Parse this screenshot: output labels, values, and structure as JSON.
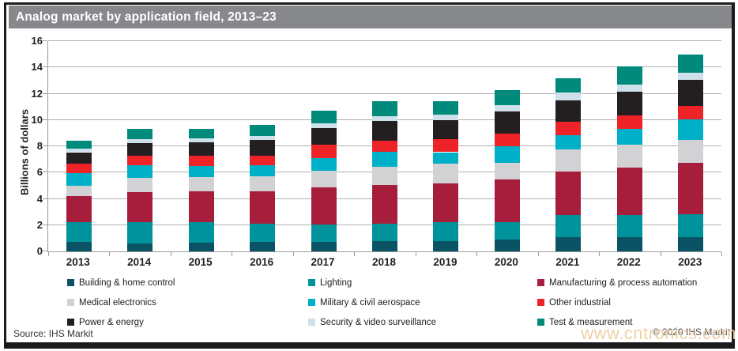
{
  "title": "Analog market by application field, 2013–23",
  "source": "Source: IHS Markit",
  "copyright": "© 2020 IHS Markit",
  "watermark": "www.cntronics.com",
  "chart_data": {
    "type": "bar",
    "stacked": true,
    "title": "Analog market by application field, 2013–23",
    "xlabel": "",
    "ylabel": "Billions of dollars",
    "ylim": [
      0,
      16
    ],
    "ytick_step": 2,
    "grid": true,
    "legend_position": "bottom",
    "categories": [
      "2013",
      "2014",
      "2015",
      "2016",
      "2017",
      "2018",
      "2019",
      "2020",
      "2021",
      "2022",
      "2023"
    ],
    "series": [
      {
        "name": "Building & home control",
        "color": "#0a5364",
        "values": [
          0.7,
          0.6,
          0.65,
          0.75,
          0.75,
          0.8,
          0.8,
          0.9,
          1.1,
          1.1,
          1.1
        ]
      },
      {
        "name": "Lighting",
        "color": "#00939b",
        "values": [
          1.55,
          1.65,
          1.55,
          1.35,
          1.3,
          1.3,
          1.4,
          1.35,
          1.65,
          1.65,
          1.75
        ]
      },
      {
        "name": "Manufacturing & process automation",
        "color": "#a71e3d",
        "values": [
          1.95,
          2.25,
          2.4,
          2.5,
          2.8,
          2.95,
          3.0,
          3.25,
          3.3,
          3.6,
          3.9
        ]
      },
      {
        "name": "Medical electronics",
        "color": "#d2d2d4",
        "values": [
          0.8,
          1.1,
          1.05,
          1.1,
          1.3,
          1.4,
          1.5,
          1.25,
          1.7,
          1.75,
          1.75
        ]
      },
      {
        "name": "Military & civil aerospace",
        "color": "#00afc8",
        "values": [
          0.95,
          0.95,
          0.85,
          0.85,
          0.95,
          1.15,
          0.85,
          1.25,
          1.1,
          1.25,
          1.55
        ]
      },
      {
        "name": "Other industrial",
        "color": "#ee2328",
        "values": [
          0.75,
          0.75,
          0.75,
          0.75,
          1.0,
          0.85,
          1.0,
          0.95,
          1.0,
          1.0,
          1.0
        ]
      },
      {
        "name": "Power & energy",
        "color": "#231f20",
        "values": [
          0.85,
          0.95,
          1.05,
          1.2,
          1.3,
          1.5,
          1.45,
          1.7,
          1.65,
          1.8,
          2.0
        ]
      },
      {
        "name": "Security & video surveillance",
        "color": "#cee0ea",
        "values": [
          0.28,
          0.3,
          0.3,
          0.3,
          0.35,
          0.35,
          0.4,
          0.5,
          0.6,
          0.55,
          0.55
        ]
      },
      {
        "name": "Test & measurement",
        "color": "#008a7c",
        "values": [
          0.6,
          0.8,
          0.75,
          0.85,
          0.95,
          1.1,
          1.0,
          1.15,
          1.1,
          1.4,
          1.4
        ]
      }
    ],
    "totals": [
      8.43,
      9.35,
      9.35,
      9.65,
      10.7,
      11.4,
      11.4,
      12.3,
      13.2,
      14.1,
      15.0
    ]
  }
}
